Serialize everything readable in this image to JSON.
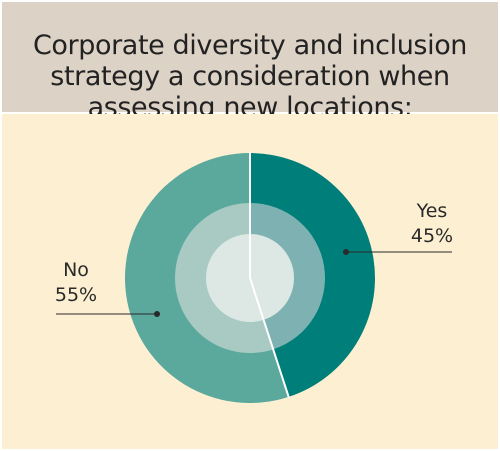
{
  "title_lines": [
    "Corporate diversity and inclusion",
    "strategy a consideration when",
    "assessing new locations:"
  ],
  "chart_data": {
    "type": "pie",
    "title": "Corporate diversity and inclusion strategy a consideration when assessing new locations:",
    "categories": [
      "Yes",
      "No"
    ],
    "values": [
      45,
      55
    ],
    "value_labels": [
      "45%",
      "55%"
    ],
    "colors": {
      "yes_outer": "#007f7a",
      "yes_middle": "#7eb2b2",
      "no_outer": "#5ba89d",
      "no_middle": "#a8cac3",
      "center": "#dde8e4",
      "divider": "#ffffff",
      "leader": "#2a2a2a"
    },
    "legend": "none"
  }
}
